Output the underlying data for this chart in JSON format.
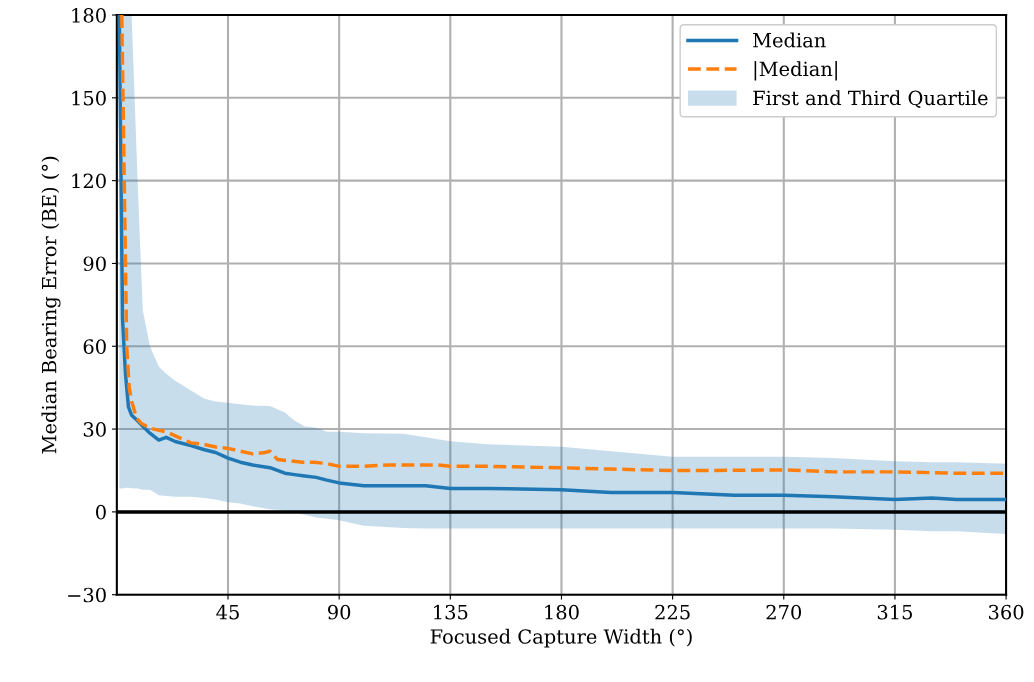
{
  "chart_data": {
    "type": "line",
    "xlabel": "Focused Capture Width (°)",
    "ylabel": "Median Bearing Error (BE) (°)",
    "xlim": [
      0,
      360
    ],
    "xticks": [
      45,
      90,
      135,
      180,
      225,
      270,
      315,
      360
    ],
    "ylim": [
      -30,
      180
    ],
    "yticks": [
      {
        "value": -30,
        "label": "−30"
      },
      0,
      30,
      60,
      90,
      120,
      150,
      180
    ],
    "grid": true,
    "legend": "top right",
    "annotations": [
      "First and Third Quartile"
    ],
    "ref_lines": [
      {
        "axis": "y",
        "value": 0,
        "color": "#000000"
      }
    ],
    "series": [
      {
        "name": "Median",
        "color": "#1f77b4",
        "line_style": "solid",
        "x": [
          1,
          2.3,
          3.5,
          4.7,
          6,
          8.4,
          10.5,
          13.4,
          17,
          20,
          23.6,
          30,
          35.5,
          40,
          45,
          50,
          55,
          62,
          68,
          72,
          76,
          80.7,
          85,
          90,
          100,
          116,
          125,
          135,
          150,
          180,
          200,
          225,
          250,
          270,
          290,
          315,
          330,
          340,
          360
        ],
        "values": [
          180,
          70,
          50,
          38,
          35,
          33,
          31,
          28.5,
          26,
          27,
          25.5,
          24,
          22.5,
          21.5,
          19.5,
          18,
          17,
          16,
          14,
          13.5,
          13,
          12.5,
          11.5,
          10.5,
          9.5,
          9.5,
          9.5,
          8.5,
          8.5,
          8,
          7,
          7,
          6,
          6,
          5.5,
          4.5,
          5,
          4.5,
          4.5
        ],
        "lower": [
          8.5,
          8.5,
          8.7,
          8.7,
          8.6,
          8.5,
          8,
          8,
          6,
          5.8,
          5.5,
          5.5,
          5,
          4.5,
          3.5,
          3,
          2,
          1,
          0.5,
          0,
          -1,
          -2,
          -2.5,
          -3,
          -5,
          -5.8,
          -6,
          -6,
          -6,
          -6,
          -6,
          -6,
          -6,
          -6,
          -6,
          -6.5,
          -7,
          -7,
          -8
        ],
        "upper": [
          180,
          180,
          180,
          180,
          180,
          120,
          73,
          60,
          52.6,
          50,
          47.5,
          44,
          41,
          40,
          39.5,
          39,
          38.5,
          38.4,
          36,
          33,
          31,
          30.5,
          29,
          29,
          28.5,
          28.3,
          27,
          25.6,
          24.5,
          23.6,
          22,
          20,
          20,
          20,
          19.5,
          18.3,
          18,
          18,
          17.4
        ]
      },
      {
        "name": "|Median|",
        "color": "#ff7f0e",
        "line_style": "dashed",
        "x": [
          2,
          3,
          4,
          5,
          6,
          8,
          10,
          12,
          15,
          20,
          25,
          30,
          35,
          40,
          45,
          50,
          55,
          60,
          62,
          65,
          70,
          75,
          80,
          85,
          90,
          100,
          110,
          120,
          130,
          135,
          150,
          180,
          200,
          225,
          240,
          270,
          290,
          315,
          340,
          360
        ],
        "values": [
          180,
          120,
          60,
          45,
          40,
          34,
          32,
          31,
          30,
          29,
          27,
          25,
          24.5,
          23.5,
          23,
          22,
          21,
          21.5,
          22,
          19,
          18.5,
          18,
          18,
          17.5,
          16.5,
          16.5,
          17,
          17,
          17,
          16.5,
          16.5,
          16,
          15.5,
          15,
          15,
          15.2,
          14.5,
          14.5,
          14,
          14
        ]
      }
    ]
  }
}
